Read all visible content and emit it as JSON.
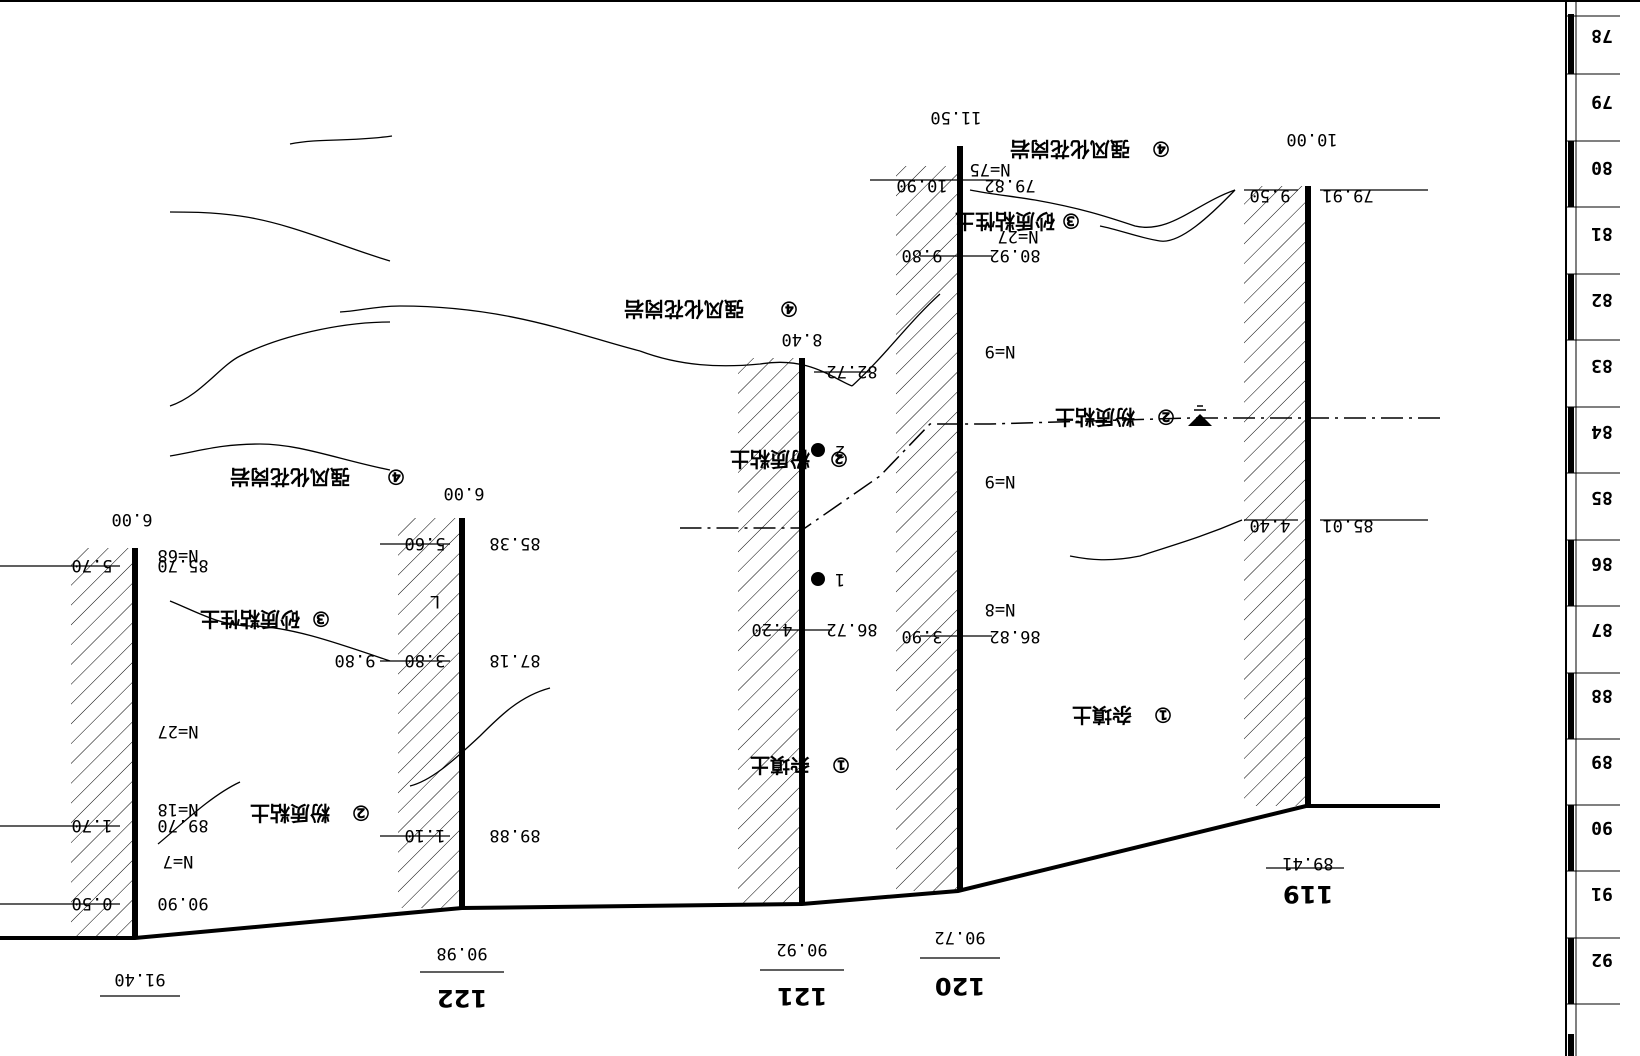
{
  "scale": [
    "78",
    "79",
    "80",
    "81",
    "82",
    "83",
    "84",
    "85",
    "86",
    "87",
    "88",
    "89",
    "90",
    "91",
    "92"
  ],
  "boreholes": [
    {
      "id": "119",
      "ground": "89.41",
      "depth": "10.00",
      "vals": [
        {
          "elev": "79.91",
          "depth": "9.50"
        },
        {
          "elev": "85.01",
          "depth": "4.40"
        }
      ],
      "blows": []
    },
    {
      "id": "120",
      "ground": "90.72",
      "depth": "11.50",
      "vals": [
        {
          "elev": "79.82",
          "depth": "10.90"
        },
        {
          "elev": "80.92",
          "depth": "9.80"
        },
        {
          "elev": "86.82",
          "depth": "3.90"
        }
      ],
      "blows": [
        "N=75",
        "N=27",
        "N=9",
        "N=9",
        "N=8"
      ]
    },
    {
      "id": "121",
      "ground": "90.92",
      "depth": "8.40",
      "vals": [
        {
          "elev": "82.72",
          "depth": ""
        },
        {
          "elev": "86.72",
          "depth": "4.20"
        }
      ],
      "blows": []
    },
    {
      "id": "122",
      "ground": "90.98",
      "depth": "6.00",
      "vals": [
        {
          "elev": "85.38",
          "depth": "5.60"
        },
        {
          "elev": "87.18",
          "depth": "3.80"
        },
        {
          "elev": "89.88",
          "depth": "1.10"
        }
      ],
      "blows": []
    },
    {
      "id": "",
      "ground": "91.40",
      "depth": "6.00",
      "vals": [
        {
          "elev": "85.70",
          "depth": "5.70"
        },
        {
          "elev": "89.70",
          "depth": "1.70"
        },
        {
          "elev": "90.90",
          "depth": "0.50"
        }
      ],
      "blows": [
        "N=68",
        "N=27",
        "N=18",
        "N=7"
      ]
    }
  ],
  "layers": [
    {
      "num": "④",
      "name": "强风化花岗岩"
    },
    {
      "num": "③",
      "name": "砂质粘性土"
    },
    {
      "num": "②",
      "name": "粉质粘土"
    },
    {
      "num": "①",
      "name": "杂填土"
    }
  ],
  "samples": [
    "2",
    "1"
  ],
  "extra": {
    "d980": "9.80",
    "L": "L"
  }
}
